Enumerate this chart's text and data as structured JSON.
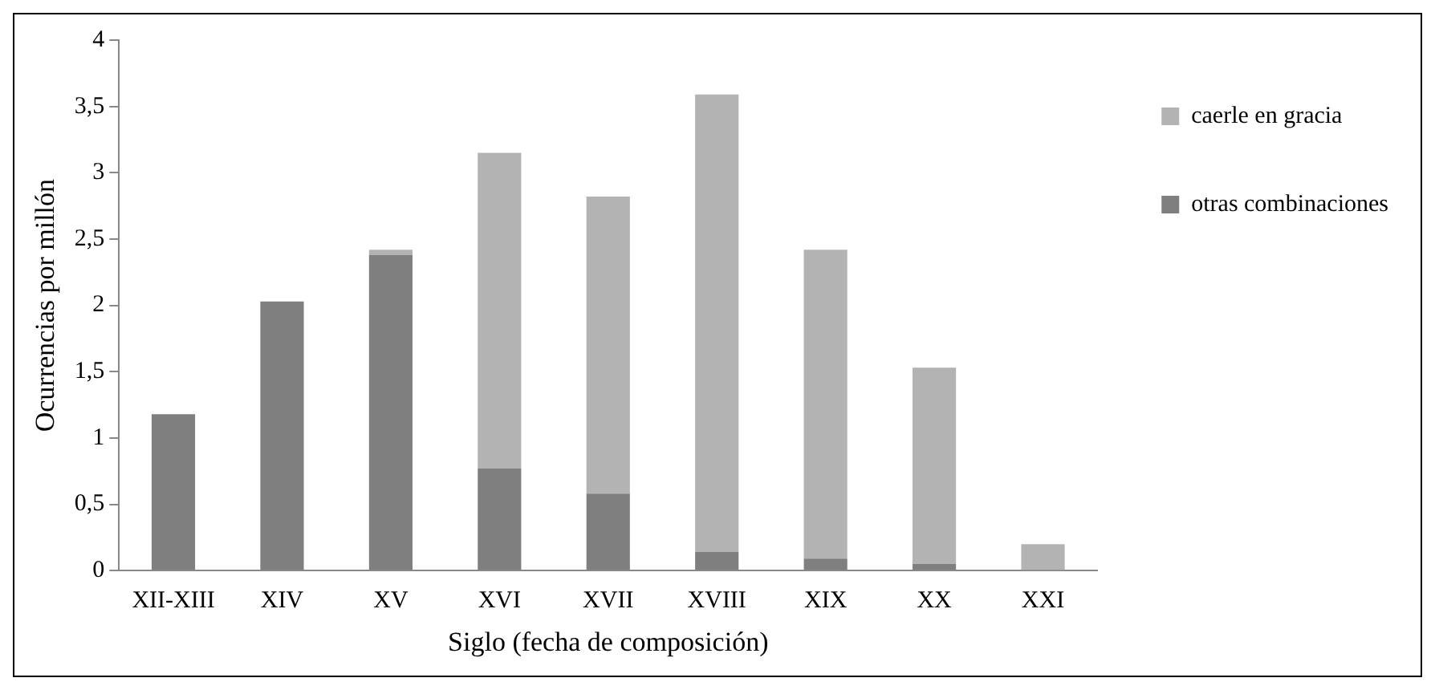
{
  "chart_data": {
    "type": "bar",
    "stacked": true,
    "xlabel": "Siglo (fecha de composición)",
    "ylabel": "Ocurrencias por millón",
    "categories": [
      "XII-XIII",
      "XIV",
      "XV",
      "XVI",
      "XVII",
      "XVIII",
      "XIX",
      "XX",
      "XXI"
    ],
    "series": [
      {
        "name": "otras combinaciones",
        "color": "#7f7f7f",
        "values": [
          1.18,
          2.03,
          2.38,
          0.77,
          0.58,
          0.14,
          0.09,
          0.05,
          0
        ]
      },
      {
        "name": "caerle en gracia",
        "color": "#b3b3b3",
        "values": [
          0,
          0,
          0.04,
          2.38,
          2.24,
          3.45,
          2.33,
          1.48,
          0.2
        ]
      }
    ],
    "ylim": [
      0,
      4
    ],
    "yticks": [
      0,
      {
        "value": 0.5,
        "label": "0,5"
      },
      1,
      {
        "value": 1.5,
        "label": "1,5"
      },
      2,
      {
        "value": 2.5,
        "label": "2,5"
      },
      3,
      {
        "value": 3.5,
        "label": "3,5"
      },
      4
    ],
    "grid": false,
    "legend": "top right"
  }
}
